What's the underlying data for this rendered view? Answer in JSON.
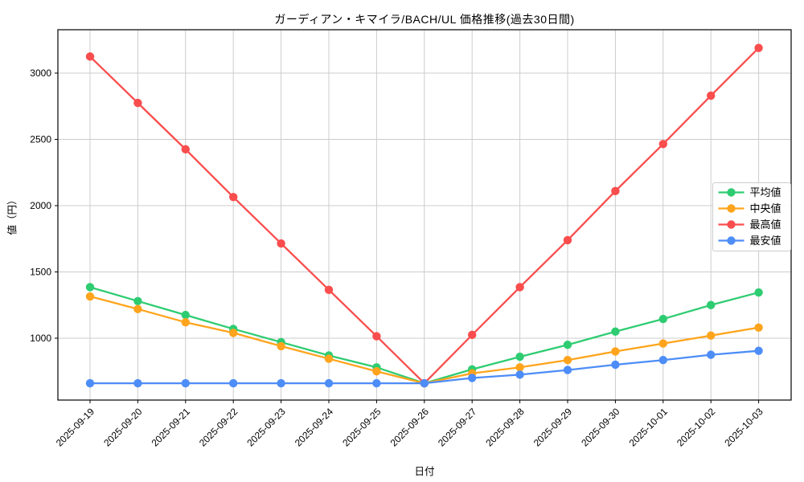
{
  "chart_data": {
    "type": "line",
    "title": "ガーディアン・キマイラ/BACH/UL 価格推移(過去30日間)",
    "xlabel": "日付",
    "ylabel": "値（円）",
    "x": [
      "2025-09-19",
      "2025-09-20",
      "2025-09-21",
      "2025-09-22",
      "2025-09-23",
      "2025-09-24",
      "2025-09-25",
      "2025-09-26",
      "2025-09-27",
      "2025-09-28",
      "2025-09-29",
      "2025-09-30",
      "2025-10-01",
      "2025-10-02",
      "2025-10-03"
    ],
    "series": [
      {
        "key": "mean",
        "name": "平均値",
        "color": "#2ecc71",
        "values": [
          1385,
          1280,
          1175,
          1070,
          970,
          870,
          780,
          660,
          765,
          860,
          950,
          1050,
          1145,
          1250,
          1345
        ]
      },
      {
        "key": "median",
        "name": "中央値",
        "color": "#ffa41c",
        "values": [
          1315,
          1220,
          1120,
          1040,
          940,
          845,
          750,
          660,
          735,
          780,
          835,
          900,
          960,
          1020,
          1080
        ]
      },
      {
        "key": "max",
        "name": "最高値",
        "color": "#fa4d4d",
        "values": [
          3125,
          2775,
          2425,
          2065,
          1715,
          1365,
          1015,
          660,
          1025,
          1385,
          1740,
          2110,
          2465,
          2830,
          3190
        ]
      },
      {
        "key": "min",
        "name": "最安値",
        "color": "#4d8df7",
        "values": [
          660,
          660,
          660,
          660,
          660,
          660,
          660,
          660,
          700,
          725,
          760,
          800,
          835,
          875,
          905
        ]
      }
    ],
    "yticks": [
      1000,
      1500,
      2000,
      2500,
      3000
    ],
    "ylim": [
      533,
      3327
    ],
    "grid": true,
    "legend_position": "center-right"
  }
}
